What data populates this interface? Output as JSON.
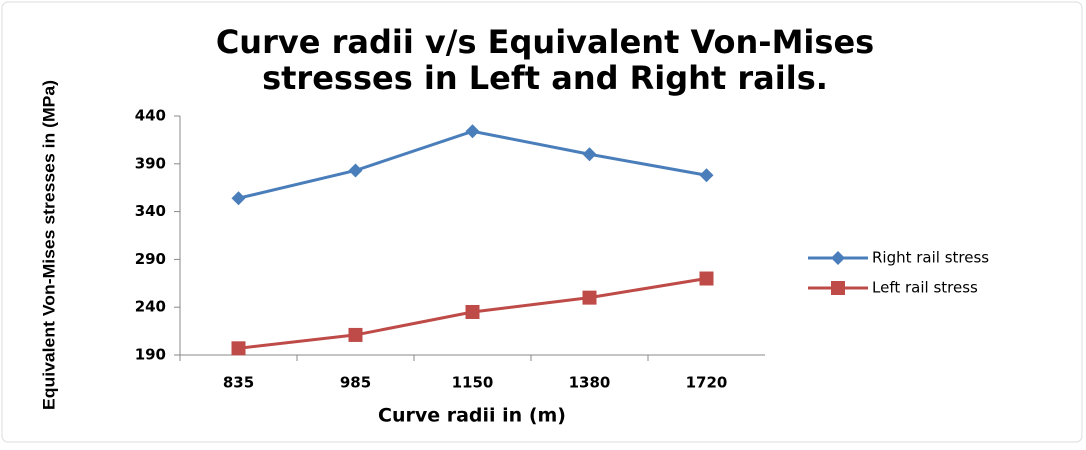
{
  "chart_data": {
    "type": "line",
    "title": [
      "Curve radii v/s Equivalent Von-Mises",
      "stresses in Left and Right rails."
    ],
    "x_label": "Curve radii in (m)",
    "y_label": "Equivalent Von-Mises stresses in  (MPa)",
    "categories": [
      "835",
      "985",
      "1150",
      "1380",
      "1720"
    ],
    "series": [
      {
        "name": "Right rail stress",
        "color": "#4a7ebb",
        "marker": "diamond",
        "values": [
          354,
          383,
          424,
          400,
          378
        ]
      },
      {
        "name": "Left rail stress",
        "color": "#be4b48",
        "marker": "square",
        "values": [
          197,
          211,
          235,
          250,
          270
        ]
      }
    ],
    "ylim": [
      190,
      440
    ],
    "yticks": [
      190,
      240,
      290,
      340,
      390,
      440
    ],
    "grid": false,
    "legend": "right"
  }
}
